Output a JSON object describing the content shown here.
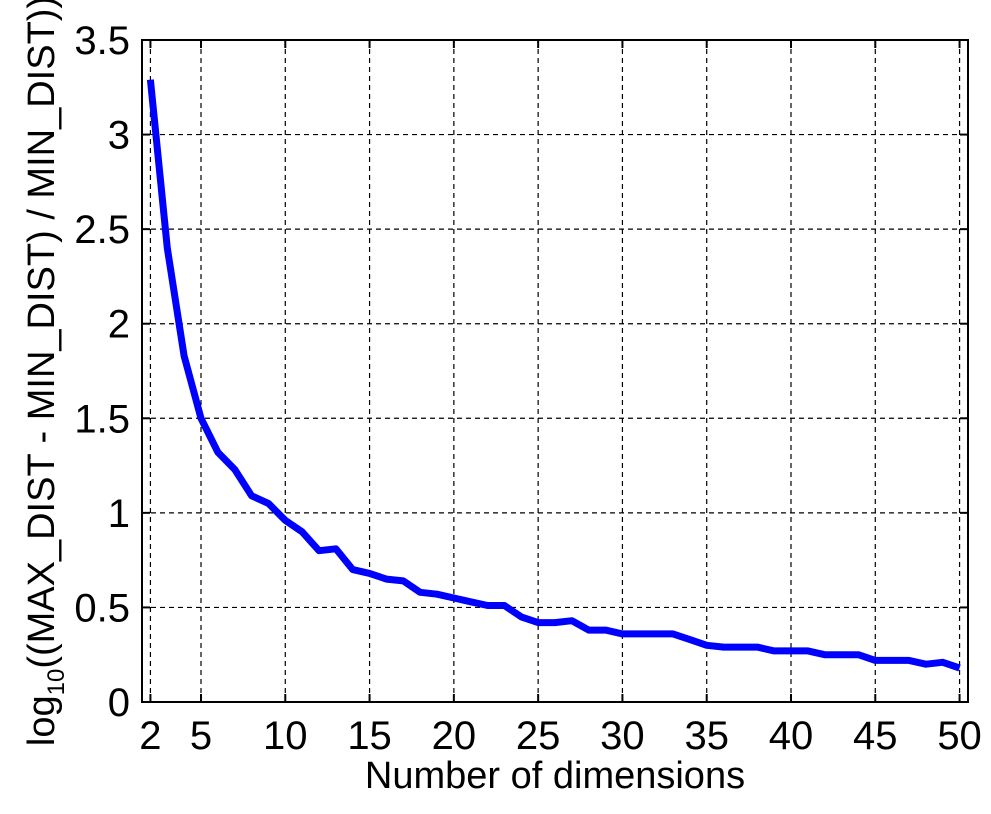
{
  "chart_data": {
    "type": "line",
    "title": "",
    "xlabel": "Number of dimensions",
    "ylabel": {
      "prefix": "log",
      "subscript": "10",
      "rest": "((MAX_DIST - MIN_DIST) / MIN_DIST))"
    },
    "xlim": [
      1.5,
      50.5
    ],
    "ylim": [
      0,
      3.5
    ],
    "xticks": [
      2,
      5,
      10,
      15,
      20,
      25,
      30,
      35,
      40,
      45,
      50
    ],
    "xtick_labels": [
      "2",
      "5",
      "10",
      "15",
      "20",
      "25",
      "30",
      "35",
      "40",
      "45",
      "50"
    ],
    "yticks": [
      0,
      0.5,
      1,
      1.5,
      2,
      2.5,
      3,
      3.5
    ],
    "ytick_labels": [
      "0",
      "0.5",
      "1",
      "1.5",
      "2",
      "2.5",
      "3",
      "3.5"
    ],
    "grid": true,
    "grid_style": "dashed",
    "series": [
      {
        "color": "#0000ff",
        "x": [
          2,
          3,
          4,
          5,
          6,
          7,
          8,
          9,
          10,
          11,
          12,
          13,
          14,
          15,
          16,
          17,
          18,
          19,
          20,
          21,
          22,
          23,
          24,
          25,
          26,
          27,
          28,
          29,
          30,
          31,
          32,
          33,
          34,
          35,
          36,
          37,
          38,
          39,
          40,
          41,
          42,
          43,
          44,
          45,
          46,
          47,
          48,
          49,
          50
        ],
        "y": [
          3.29,
          2.4,
          1.83,
          1.5,
          1.32,
          1.23,
          1.09,
          1.05,
          0.96,
          0.9,
          0.8,
          0.81,
          0.7,
          0.68,
          0.65,
          0.64,
          0.58,
          0.57,
          0.55,
          0.53,
          0.51,
          0.51,
          0.45,
          0.42,
          0.42,
          0.43,
          0.38,
          0.38,
          0.36,
          0.36,
          0.36,
          0.36,
          0.33,
          0.3,
          0.29,
          0.29,
          0.29,
          0.27,
          0.27,
          0.27,
          0.25,
          0.25,
          0.25,
          0.22,
          0.22,
          0.22,
          0.2,
          0.21,
          0.18
        ]
      }
    ]
  }
}
